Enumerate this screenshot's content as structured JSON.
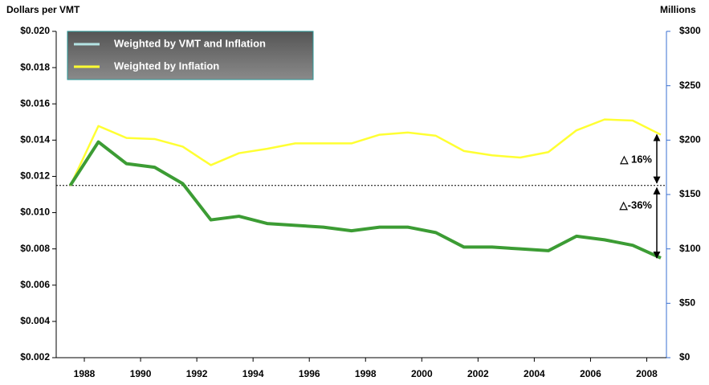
{
  "chart_data": {
    "type": "line",
    "y_label": "Dollars per VMT",
    "y2_label": "Millions",
    "xlim": [
      1987,
      2008.7
    ],
    "xticks": [
      1988,
      1990,
      1992,
      1994,
      1996,
      1998,
      2000,
      2002,
      2004,
      2006,
      2008
    ],
    "ylim": [
      0.002,
      0.02
    ],
    "yticks": [
      {
        "value": 0.002,
        "label": "$0.002"
      },
      {
        "value": 0.004,
        "label": "$0.004"
      },
      {
        "value": 0.006,
        "label": "$0.006"
      },
      {
        "value": 0.008,
        "label": "$0.008"
      },
      {
        "value": 0.01,
        "label": "$0.010"
      },
      {
        "value": 0.012,
        "label": "$0.012"
      },
      {
        "value": 0.014,
        "label": "$0.014"
      },
      {
        "value": 0.016,
        "label": "$0.016"
      },
      {
        "value": 0.018,
        "label": "$0.018"
      },
      {
        "value": 0.02,
        "label": "$0.020"
      }
    ],
    "y2lim": [
      0,
      300
    ],
    "y2ticks": [
      {
        "value": 0,
        "label": "$0"
      },
      {
        "value": 50,
        "label": "$50"
      },
      {
        "value": 100,
        "label": "$100"
      },
      {
        "value": 150,
        "label": "$150"
      },
      {
        "value": 200,
        "label": "$200"
      },
      {
        "value": 250,
        "label": "$250"
      },
      {
        "value": 300,
        "label": "$300"
      }
    ],
    "x": [
      1987.5,
      1988.5,
      1989.5,
      1990.5,
      1991.5,
      1992.5,
      1993.5,
      1994.5,
      1995.5,
      1996.5,
      1997.5,
      1998.5,
      1999.5,
      2000.5,
      2001.5,
      2002.5,
      2003.5,
      2004.5,
      2005.5,
      2006.5,
      2007.5,
      2008.5
    ],
    "series": [
      {
        "name": "Weighted by VMT and Inflation",
        "color": "#3c9c34",
        "legend_color": "#b4e4e4",
        "values": [
          0.0115,
          0.0139,
          0.0127,
          0.0125,
          0.0116,
          0.0096,
          0.0098,
          0.0094,
          0.0093,
          0.0092,
          0.009,
          0.0092,
          0.0092,
          0.0089,
          0.0081,
          0.0081,
          0.008,
          0.0079,
          0.0087,
          0.0085,
          0.0082,
          0.0075
        ]
      },
      {
        "name": "Weighted by Inflation",
        "color": "#ffff33",
        "legend_color": "#ffff33",
        "axis": "y2",
        "values": [
          158,
          213,
          202,
          201,
          194,
          177,
          188,
          192,
          197,
          197,
          197,
          205,
          207,
          204,
          190,
          186,
          184,
          189,
          209,
          219,
          218,
          205
        ]
      }
    ],
    "reference_line": 0.0115,
    "annotations": [
      "△ 16%",
      "△-36%"
    ]
  }
}
